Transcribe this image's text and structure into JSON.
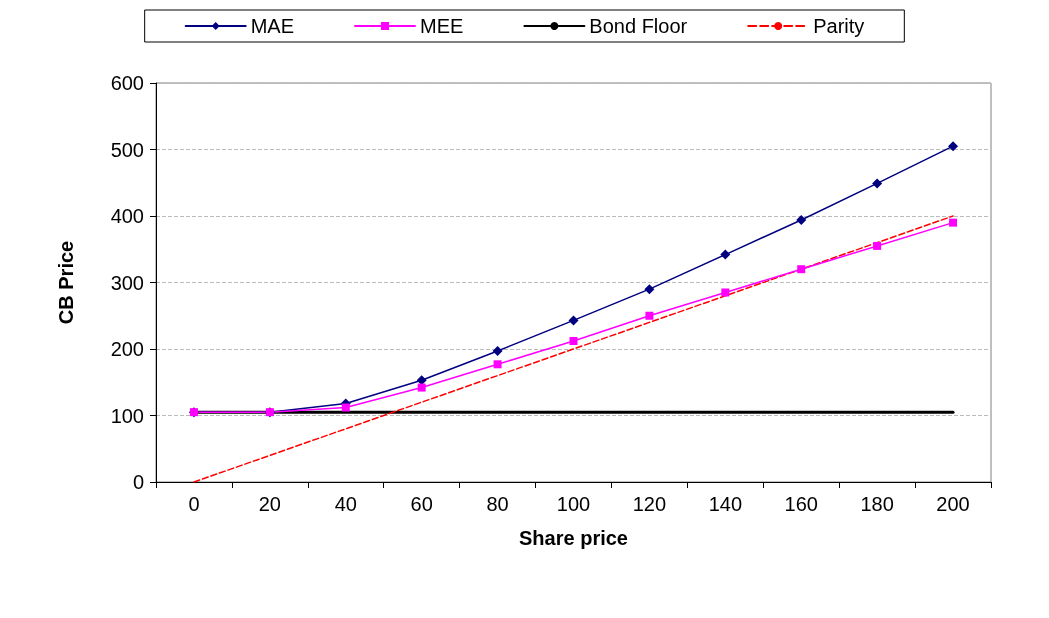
{
  "chart_data": {
    "type": "line",
    "xlabel": "Share price",
    "ylabel": "CB Price",
    "categories": [
      "0",
      "20",
      "40",
      "60",
      "80",
      "100",
      "120",
      "140",
      "160",
      "180",
      "200"
    ],
    "series": [
      {
        "name": "MAE",
        "color": "#000080",
        "marker": "diamond",
        "line_style": "solid",
        "values": [
          105,
          105,
          118,
          153,
          197,
          243,
          290,
          342,
          394,
          449,
          505
        ]
      },
      {
        "name": "MEE",
        "color": "#ff00ff",
        "marker": "square",
        "line_style": "solid",
        "values": [
          105,
          105,
          112,
          142,
          177,
          212,
          250,
          285,
          320,
          355,
          390
        ]
      },
      {
        "name": "Bond Floor",
        "color": "#000000",
        "marker": "none",
        "line_style": "solid",
        "values": [
          105,
          105,
          105,
          105,
          105,
          105,
          105,
          105,
          105,
          105,
          105
        ]
      },
      {
        "name": "Parity",
        "color": "#ff0000",
        "marker": "none",
        "line_style": "dashed",
        "values": [
          0,
          40,
          80,
          120,
          160,
          200,
          240,
          280,
          320,
          360,
          400
        ]
      }
    ],
    "ylim": [
      0,
      600
    ],
    "yticks": [
      0,
      100,
      200,
      300,
      400,
      500,
      600
    ],
    "grid": "y",
    "legend": "top"
  }
}
